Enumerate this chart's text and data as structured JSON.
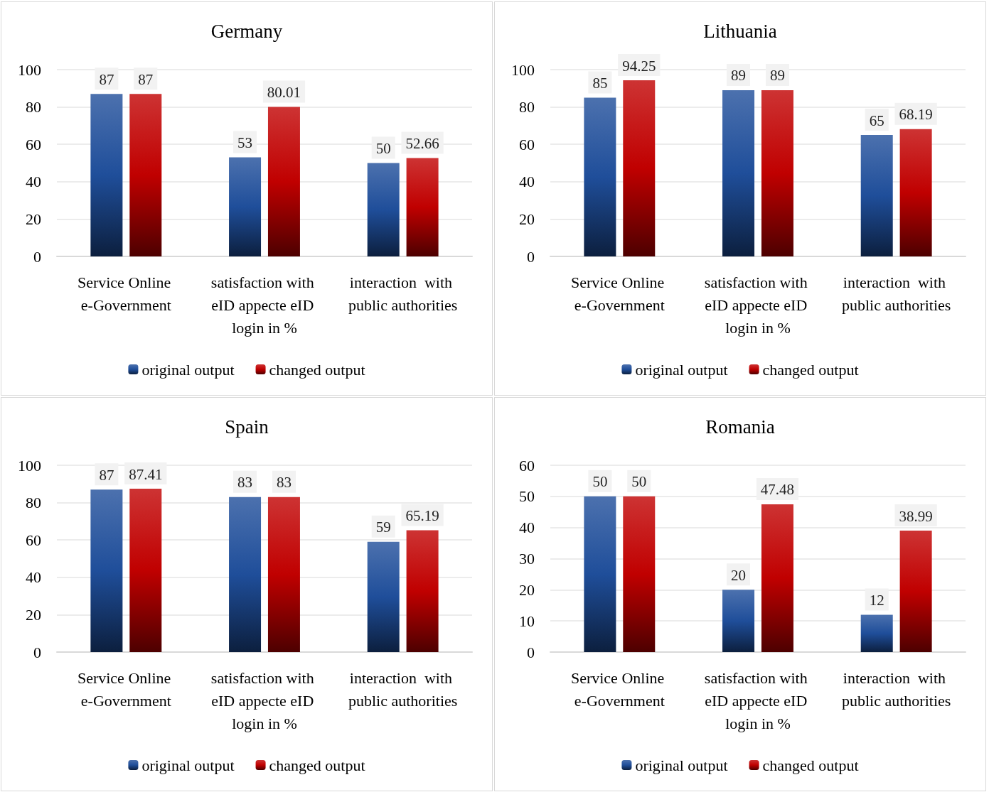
{
  "chart_data": [
    {
      "type": "bar",
      "title": "Germany",
      "categories": [
        "Service Online e-Government",
        "satisfaction with eID appecte eID login in %",
        "interaction  with public authorities"
      ],
      "series": [
        {
          "name": "original output",
          "color": "#1f4e9a",
          "values": [
            87,
            53,
            50
          ]
        },
        {
          "name": "changed output",
          "color": "#c00000",
          "values": [
            87,
            80.01,
            52.66
          ]
        }
      ],
      "ylim": [
        0,
        100
      ],
      "yticks": [
        0,
        20,
        40,
        60,
        80,
        100
      ],
      "grid": "y",
      "legend": "bottom",
      "data_labels": true
    },
    {
      "type": "bar",
      "title": "Lithuania",
      "categories": [
        "Service Online e-Government",
        "satisfaction with eID appecte eID login in %",
        "interaction  with public authorities"
      ],
      "series": [
        {
          "name": "original output",
          "color": "#1f4e9a",
          "values": [
            85,
            89,
            65
          ]
        },
        {
          "name": "changed output",
          "color": "#c00000",
          "values": [
            94.25,
            89,
            68.19
          ]
        }
      ],
      "ylim": [
        0,
        100
      ],
      "yticks": [
        0,
        20,
        40,
        60,
        80,
        100
      ],
      "grid": "y",
      "legend": "bottom",
      "data_labels": true
    },
    {
      "type": "bar",
      "title": "Spain",
      "categories": [
        "Service Online e-Government",
        "satisfaction with eID appecte eID login in %",
        "interaction  with public authorities"
      ],
      "series": [
        {
          "name": "original output",
          "color": "#1f4e9a",
          "values": [
            87,
            83,
            59
          ]
        },
        {
          "name": "changed output",
          "color": "#c00000",
          "values": [
            87.41,
            83,
            65.19
          ]
        }
      ],
      "ylim": [
        0,
        100
      ],
      "yticks": [
        0,
        20,
        40,
        60,
        80,
        100
      ],
      "grid": "y",
      "legend": "bottom",
      "data_labels": true
    },
    {
      "type": "bar",
      "title": "Romania",
      "categories": [
        "Service Online e-Government",
        "satisfaction with eID appecte eID login in %",
        "interaction  with public authorities"
      ],
      "series": [
        {
          "name": "original output",
          "color": "#1f4e9a",
          "values": [
            50,
            20,
            12
          ]
        },
        {
          "name": "changed output",
          "color": "#c00000",
          "values": [
            50,
            47.48,
            38.99
          ]
        }
      ],
      "ylim": [
        0,
        60
      ],
      "yticks": [
        0,
        10,
        20,
        30,
        40,
        50,
        60
      ],
      "grid": "y",
      "legend": "bottom",
      "data_labels": true
    }
  ]
}
